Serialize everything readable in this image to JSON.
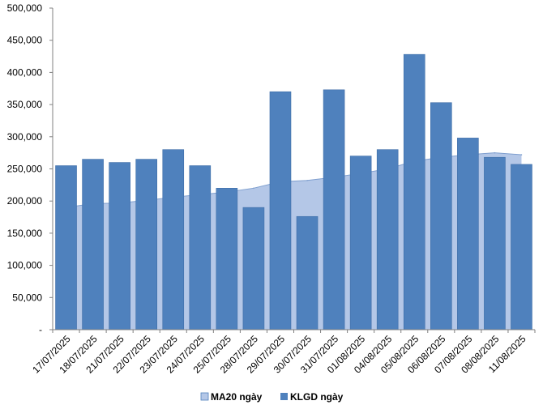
{
  "chart_data": {
    "type": "bar",
    "categories": [
      "17/07/2025",
      "18/07/2025",
      "21/07/2025",
      "22/07/2025",
      "23/07/2025",
      "24/07/2025",
      "25/07/2025",
      "28/07/2025",
      "29/07/2025",
      "30/07/2025",
      "31/07/2025",
      "01/08/2025",
      "04/08/2025",
      "05/08/2025",
      "06/08/2025",
      "07/08/2025",
      "08/08/2025",
      "11/08/2025"
    ],
    "series": [
      {
        "name": "MA20 ngày",
        "kind": "area",
        "color": "#B4C7E7",
        "values": [
          190000,
          196000,
          197000,
          201000,
          206000,
          210000,
          214000,
          220000,
          230000,
          232000,
          237000,
          243000,
          250000,
          262000,
          268000,
          272000,
          275000,
          272000
        ]
      },
      {
        "name": "KLGD ngày",
        "kind": "bar",
        "color": "#4F81BD",
        "values": [
          255000,
          265000,
          260000,
          265000,
          280000,
          255000,
          220000,
          190000,
          370000,
          176000,
          373000,
          270000,
          280000,
          428000,
          353000,
          298000,
          268000,
          257000
        ]
      }
    ],
    "ylim": [
      0,
      500000
    ],
    "yticks": [
      "-",
      "50,000",
      "100,000",
      "150,000",
      "200,000",
      "250,000",
      "300,000",
      "350,000",
      "400,000",
      "450,000",
      "500,000"
    ],
    "ytick_values": [
      0,
      50000,
      100000,
      150000,
      200000,
      250000,
      300000,
      350000,
      400000,
      450000,
      500000
    ],
    "legend_position": "bottom",
    "grid": false
  }
}
